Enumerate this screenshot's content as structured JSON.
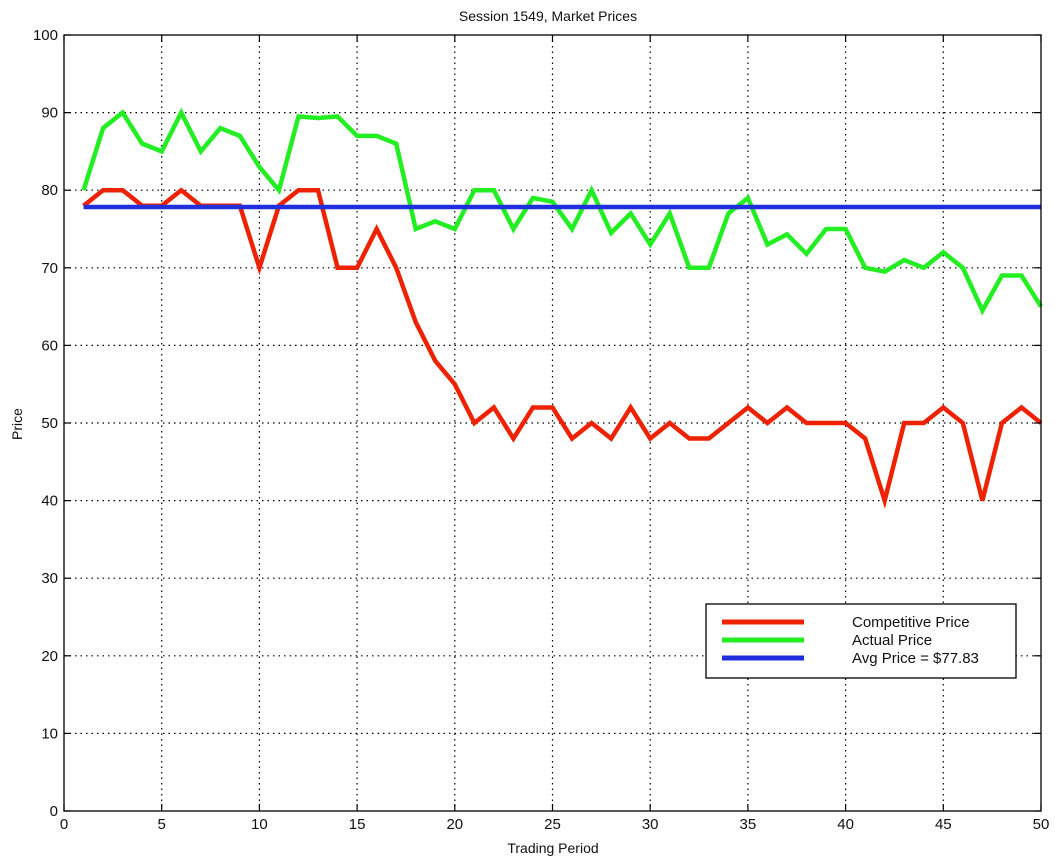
{
  "chart_data": {
    "type": "line",
    "title": "Session 1549, Market Prices",
    "xlabel": "Trading Period",
    "ylabel": "Price",
    "xlim": [
      0,
      50
    ],
    "ylim": [
      0,
      100
    ],
    "xticks": [
      0,
      5,
      10,
      15,
      20,
      25,
      30,
      35,
      40,
      45,
      50
    ],
    "yticks": [
      0,
      10,
      20,
      30,
      40,
      50,
      60,
      70,
      80,
      90,
      100
    ],
    "grid": true,
    "legend_position": "bottom-right",
    "x": [
      1,
      2,
      3,
      4,
      5,
      6,
      7,
      8,
      9,
      10,
      11,
      12,
      13,
      14,
      15,
      16,
      17,
      18,
      19,
      20,
      21,
      22,
      23,
      24,
      25,
      26,
      27,
      28,
      29,
      30,
      31,
      32,
      33,
      34,
      35,
      36,
      37,
      38,
      39,
      40,
      41,
      42,
      43,
      44,
      45,
      46,
      47,
      48,
      49,
      50
    ],
    "series": [
      {
        "name": "Competitive Price",
        "color": "#ee2200",
        "values": [
          78,
          80,
          80,
          78,
          78,
          80,
          78,
          78,
          78,
          70,
          78,
          80,
          80,
          70,
          70,
          75,
          70,
          63,
          58,
          55,
          50,
          52,
          48,
          52,
          52,
          48,
          50,
          48,
          52,
          48,
          50,
          48,
          48,
          50,
          52,
          50,
          52,
          50,
          50,
          50,
          48,
          40,
          50,
          50,
          52,
          50,
          40,
          50,
          52,
          50
        ]
      },
      {
        "name": "Actual Price",
        "color": "#22ee22",
        "values": [
          80,
          88,
          90,
          86,
          85,
          90,
          85,
          88,
          87,
          83,
          80,
          89.5,
          89.3,
          89.5,
          87,
          87,
          86,
          75,
          76,
          75,
          80,
          80,
          75,
          79,
          78.5,
          75,
          80,
          74.5,
          77,
          73,
          77,
          70,
          70,
          77,
          79,
          73,
          74.3,
          71.8,
          75,
          75,
          70,
          69.5,
          71,
          70,
          72,
          70,
          64.5,
          69,
          69,
          65
        ]
      },
      {
        "name": "Avg Price = $77.83",
        "color": "#1f2fdd",
        "values": [
          77.83,
          77.83,
          77.83,
          77.83,
          77.83,
          77.83,
          77.83,
          77.83,
          77.83,
          77.83,
          77.83,
          77.83,
          77.83,
          77.83,
          77.83,
          77.83,
          77.83,
          77.83,
          77.83,
          77.83,
          77.83,
          77.83,
          77.83,
          77.83,
          77.83,
          77.83,
          77.83,
          77.83,
          77.83,
          77.83,
          77.83,
          77.83,
          77.83,
          77.83,
          77.83,
          77.83,
          77.83,
          77.83,
          77.83,
          77.83,
          77.83,
          77.83,
          77.83,
          77.83,
          77.83,
          77.83,
          77.83,
          77.83,
          77.83,
          77.83
        ]
      }
    ]
  }
}
